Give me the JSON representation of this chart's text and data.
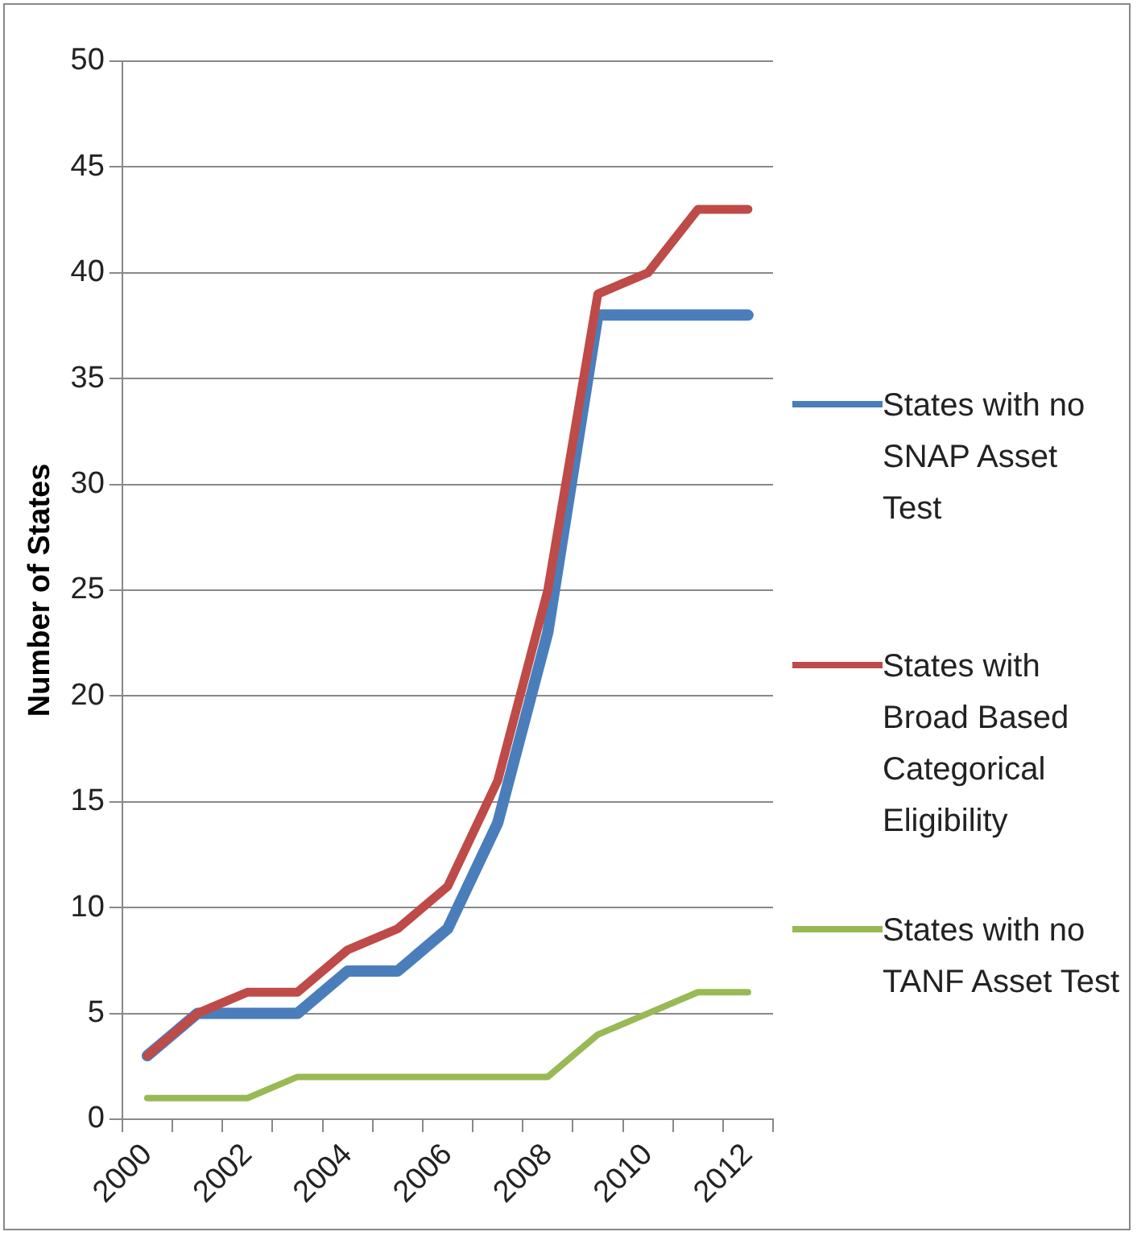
{
  "chart_data": {
    "type": "line",
    "ylabel": "Number of States",
    "categories": [
      "2000",
      null,
      "2002",
      null,
      "2004",
      null,
      "2006",
      null,
      "2008",
      null,
      "2010",
      null,
      "2012"
    ],
    "series": [
      {
        "name": "States with no SNAP Asset Test",
        "color": "#4a7ebb",
        "values": [
          3,
          5,
          5,
          5,
          7,
          7,
          9,
          14,
          23,
          38,
          38,
          38,
          38
        ]
      },
      {
        "name": "States with Broad Based Categorical Eligibility",
        "color": "#be4b48",
        "values": [
          3,
          5,
          6,
          6,
          8,
          9,
          11,
          16,
          25,
          39,
          40,
          43,
          43
        ]
      },
      {
        "name": "States with no TANF Asset Test",
        "color": "#98b954",
        "values": [
          1,
          1,
          1,
          2,
          2,
          2,
          2,
          2,
          2,
          4,
          5,
          6,
          6
        ]
      }
    ],
    "ylim": [
      0,
      50
    ],
    "yticks": [
      0,
      5,
      10,
      15,
      20,
      25,
      30,
      35,
      40,
      45,
      50
    ],
    "grid": "y",
    "legend": "right",
    "marker": "none",
    "line_style": "solid"
  }
}
